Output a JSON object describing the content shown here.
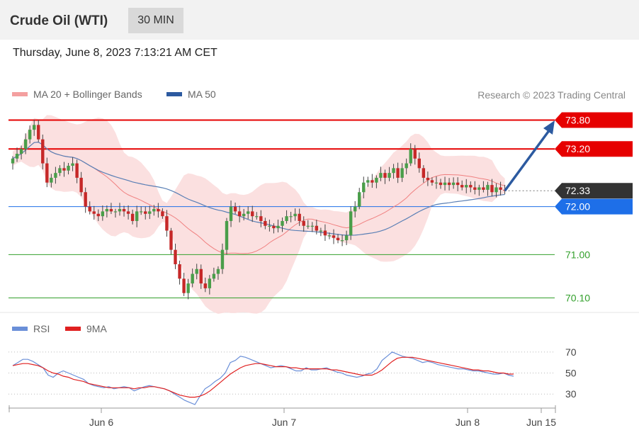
{
  "header": {
    "title": "Crude Oil (WTI)",
    "timeframe": "30 MIN"
  },
  "timestamp": "Thursday, June 8, 2023 7:13:21 AM CET",
  "legend": {
    "ma20_label": "MA 20 + Bollinger Bands",
    "ma50_label": "MA 50",
    "rsi_label": "RSI",
    "rsi_ma_label": "9MA",
    "credit": "Research © 2023 Trading Central"
  },
  "colors": {
    "resistance": "#e60000",
    "current": "#333333",
    "pivot": "#1e6fe8",
    "support": "#33a02c",
    "ma20": "#f08080",
    "ma50": "#5a7fb5",
    "band": "#fadada",
    "up_candle": "#4a9e4a",
    "down_candle": "#c62828",
    "rsi": "#6a8fd8",
    "rsi_ma": "#e02020",
    "arrow": "#2c5aa0"
  },
  "chart_data": {
    "type": "candlestick",
    "x_ticks": [
      "Jun 6",
      "Jun 7",
      "Jun 8",
      "Jun 15"
    ],
    "levels": [
      {
        "label": "73.80",
        "value": 73.8,
        "kind": "resistance"
      },
      {
        "label": "73.20",
        "value": 73.2,
        "kind": "resistance"
      },
      {
        "label": "72.33",
        "value": 72.33,
        "kind": "current"
      },
      {
        "label": "72.00",
        "value": 72.0,
        "kind": "pivot"
      },
      {
        "label": "71.00",
        "value": 71.0,
        "kind": "support"
      },
      {
        "label": "70.10",
        "value": 70.1,
        "kind": "support"
      }
    ],
    "price_range": [
      69.9,
      74.0
    ],
    "closes": [
      73.0,
      73.1,
      73.2,
      73.4,
      73.6,
      73.7,
      73.4,
      72.9,
      72.5,
      72.6,
      72.7,
      72.8,
      72.75,
      72.85,
      72.9,
      72.6,
      72.3,
      72.0,
      71.9,
      71.85,
      71.8,
      71.9,
      71.95,
      71.9,
      71.9,
      71.95,
      71.9,
      71.85,
      71.7,
      71.9,
      71.9,
      71.85,
      71.9,
      71.95,
      71.9,
      71.8,
      71.5,
      71.1,
      70.8,
      70.5,
      70.2,
      70.4,
      70.6,
      70.7,
      70.4,
      70.3,
      70.5,
      70.6,
      70.7,
      71.1,
      71.7,
      72.0,
      71.9,
      71.8,
      71.85,
      71.9,
      71.8,
      71.8,
      71.7,
      71.6,
      71.6,
      71.55,
      71.6,
      71.7,
      71.8,
      71.8,
      71.85,
      71.7,
      71.6,
      71.6,
      71.6,
      71.5,
      71.5,
      71.4,
      71.4,
      71.35,
      71.3,
      71.3,
      71.4,
      71.9,
      72.0,
      72.3,
      72.5,
      72.55,
      72.5,
      72.6,
      72.7,
      72.6,
      72.7,
      72.8,
      72.6,
      72.8,
      72.9,
      73.2,
      73.0,
      72.8,
      72.6,
      72.55,
      72.5,
      72.5,
      72.45,
      72.5,
      72.45,
      72.5,
      72.45,
      72.4,
      72.45,
      72.4,
      72.35,
      72.4,
      72.35,
      72.45,
      72.3,
      72.4,
      72.35,
      72.33
    ],
    "rsi_levels": [
      70,
      50,
      30
    ],
    "rsi_range": [
      18,
      80
    ],
    "rsi": [
      57,
      60,
      63,
      63,
      61,
      58,
      55,
      48,
      46,
      50,
      52,
      50,
      48,
      46,
      44,
      40,
      38,
      37,
      36,
      37,
      35,
      36,
      37,
      36,
      33,
      35,
      37,
      38,
      37,
      36,
      35,
      33,
      30,
      27,
      24,
      22,
      20,
      28,
      35,
      38,
      42,
      45,
      50,
      60,
      62,
      66,
      65,
      63,
      61,
      59,
      57,
      55,
      56,
      57,
      56,
      54,
      52,
      52,
      55,
      53,
      53,
      54,
      55,
      53,
      51,
      50,
      48,
      47,
      46,
      47,
      49,
      50,
      54,
      62,
      66,
      70,
      68,
      66,
      65,
      64,
      62,
      60,
      61,
      60,
      58,
      57,
      56,
      55,
      54,
      54,
      53,
      52,
      52,
      51,
      50,
      49,
      49,
      50,
      48,
      47
    ],
    "rsi_ma": [
      57,
      58,
      59,
      59,
      58,
      57,
      55,
      52,
      50,
      49,
      47,
      46,
      44,
      43,
      42,
      40,
      39,
      38,
      37,
      36,
      36,
      36,
      36,
      36,
      35,
      36,
      36,
      37,
      37,
      36,
      35,
      33,
      31,
      29,
      28,
      27,
      27,
      28,
      30,
      33,
      37,
      41,
      45,
      49,
      52,
      55,
      57,
      58,
      59,
      59,
      58,
      57,
      56,
      56,
      56,
      55,
      55,
      54,
      54,
      54,
      54,
      54,
      54,
      53,
      53,
      52,
      51,
      50,
      49,
      48,
      48,
      48,
      50,
      53,
      57,
      61,
      64,
      65,
      65,
      65,
      64,
      63,
      62,
      61,
      60,
      59,
      58,
      57,
      56,
      55,
      54,
      53,
      53,
      52,
      52,
      51,
      50,
      50,
      49,
      49
    ]
  }
}
